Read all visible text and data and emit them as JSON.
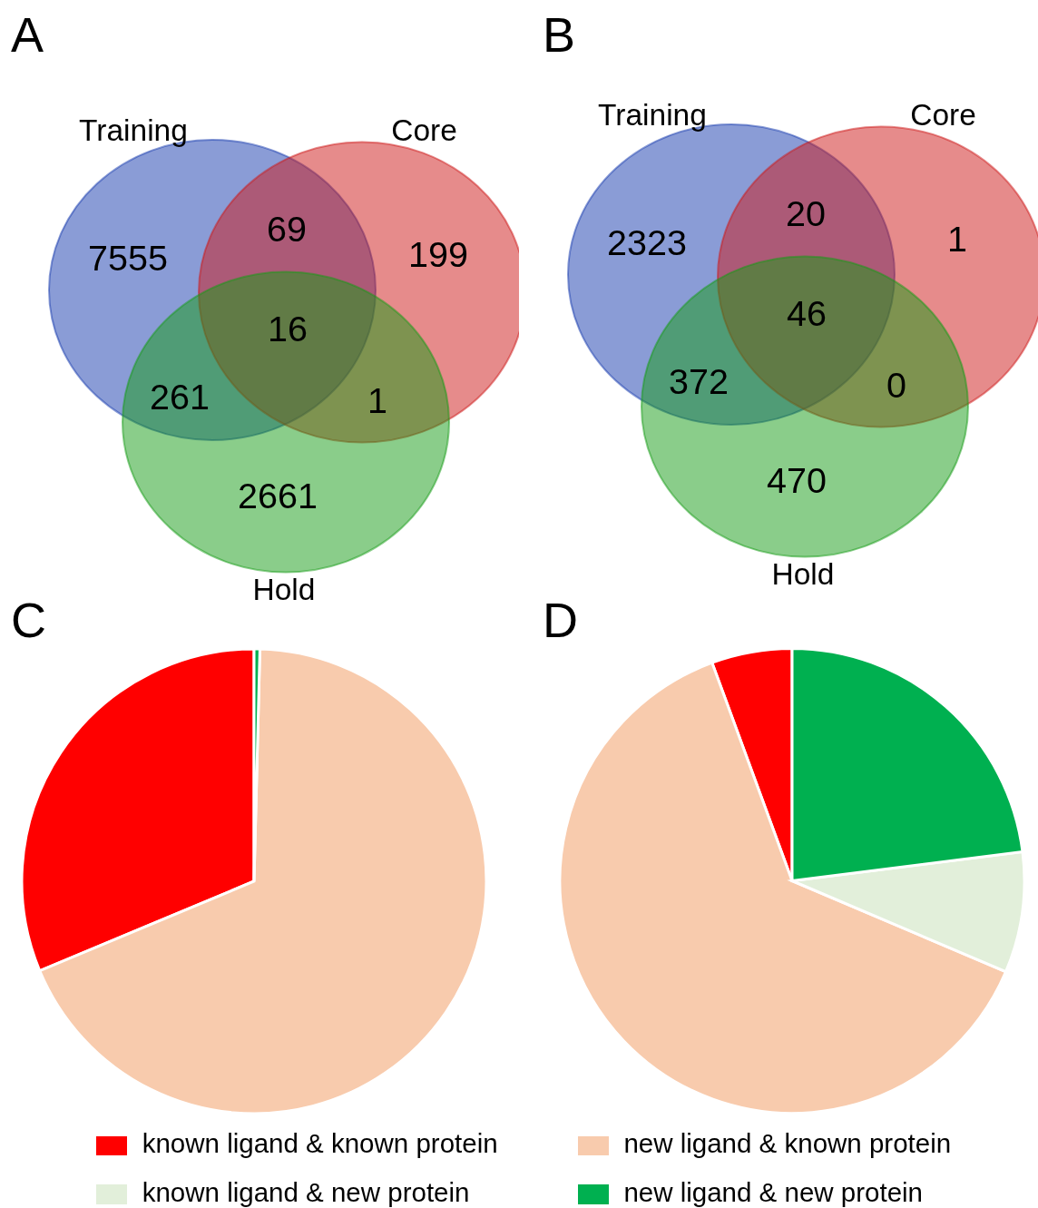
{
  "chart_data": [
    {
      "type": "other",
      "title": "A",
      "categories": [
        "Training",
        "Core",
        "Hold"
      ],
      "colors": [
        "#8a9cd6",
        "#e68b8b",
        "#8acd8a"
      ],
      "annotations": [
        "7555",
        "199",
        "69",
        "2661",
        "261",
        "1",
        "16"
      ]
    },
    {
      "type": "other",
      "title": "B",
      "categories": [
        "Training",
        "Core",
        "Hold"
      ],
      "colors": [
        "#8a9cd6",
        "#e68b8b",
        "#8acd8a"
      ],
      "annotations": [
        "2323",
        "1",
        "20",
        "470",
        "372",
        "0",
        "46"
      ]
    },
    {
      "type": "pie",
      "categories": [
        "known ligand & known protein",
        "new ligand & known protein",
        "known ligand & new protein",
        "new ligand & new protein"
      ],
      "colors": [
        "#ff0000",
        "#f8cbad",
        "#e2efda",
        "#00b050"
      ],
      "series": [
        {
          "name": "C",
          "values": [
            31.3,
            68.3,
            0,
            0.4
          ]
        },
        {
          "name": "D",
          "values": [
            5.6,
            63.0,
            8.4,
            23.0
          ]
        }
      ],
      "legend": "bottom"
    }
  ]
}
